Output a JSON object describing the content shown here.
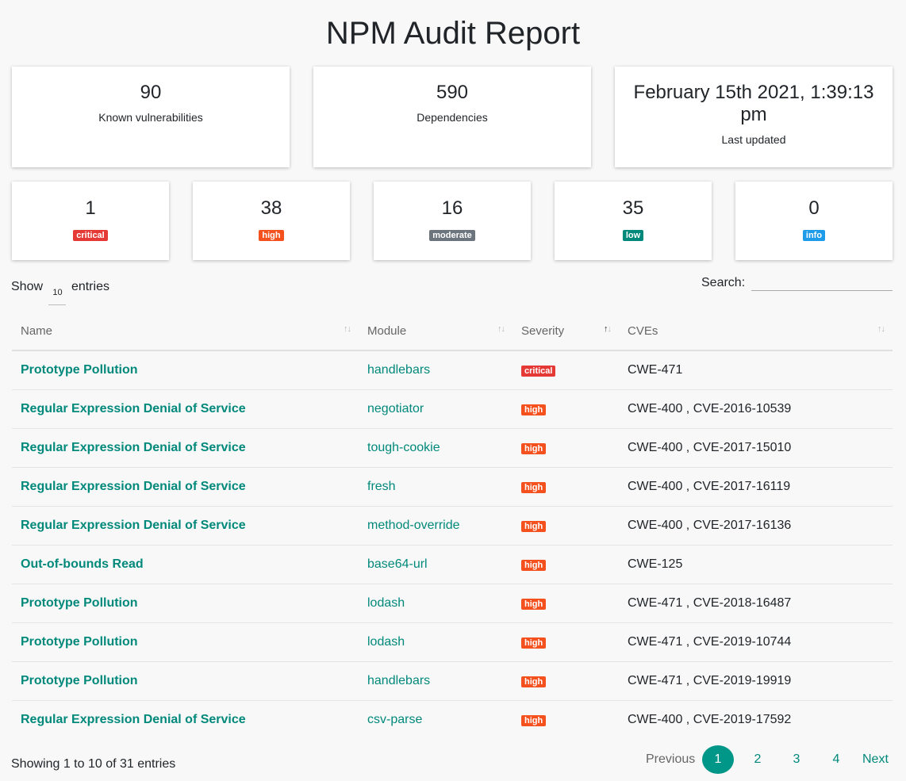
{
  "title": "NPM Audit Report",
  "summary": [
    {
      "value": "90",
      "label": "Known vulnerabilities"
    },
    {
      "value": "590",
      "label": "Dependencies"
    },
    {
      "value": "February 15th 2021, 1:39:13 pm",
      "label": "Last updated"
    }
  ],
  "severity_counts": [
    {
      "count": "1",
      "label": "critical",
      "color": "#e53935"
    },
    {
      "count": "38",
      "label": "high",
      "color": "#f4511e"
    },
    {
      "count": "16",
      "label": "moderate",
      "color": "#6c757d"
    },
    {
      "count": "35",
      "label": "low",
      "color": "#00897b"
    },
    {
      "count": "0",
      "label": "info",
      "color": "#1e9be9"
    }
  ],
  "length": {
    "show_label": "Show",
    "value": "10",
    "entries_label": "entries"
  },
  "search": {
    "label": "Search:",
    "value": ""
  },
  "table": {
    "columns": [
      "Name",
      "Module",
      "Severity",
      "CVEs"
    ],
    "sorted_column": "Severity",
    "rows": [
      {
        "name": "Prototype Pollution",
        "module": "handlebars",
        "severity": "critical",
        "cves": "CWE-471"
      },
      {
        "name": "Regular Expression Denial of Service",
        "module": "negotiator",
        "severity": "high",
        "cves": "CWE-400 , CVE-2016-10539"
      },
      {
        "name": "Regular Expression Denial of Service",
        "module": "tough-cookie",
        "severity": "high",
        "cves": "CWE-400 , CVE-2017-15010"
      },
      {
        "name": "Regular Expression Denial of Service",
        "module": "fresh",
        "severity": "high",
        "cves": "CWE-400 , CVE-2017-16119"
      },
      {
        "name": "Regular Expression Denial of Service",
        "module": "method-override",
        "severity": "high",
        "cves": "CWE-400 , CVE-2017-16136"
      },
      {
        "name": "Out-of-bounds Read",
        "module": "base64-url",
        "severity": "high",
        "cves": "CWE-125"
      },
      {
        "name": "Prototype Pollution",
        "module": "lodash",
        "severity": "high",
        "cves": "CWE-471 , CVE-2018-16487"
      },
      {
        "name": "Prototype Pollution",
        "module": "lodash",
        "severity": "high",
        "cves": "CWE-471 , CVE-2019-10744"
      },
      {
        "name": "Prototype Pollution",
        "module": "handlebars",
        "severity": "high",
        "cves": "CWE-471 , CVE-2019-19919"
      },
      {
        "name": "Regular Expression Denial of Service",
        "module": "csv-parse",
        "severity": "high",
        "cves": "CWE-400 , CVE-2019-17592"
      }
    ]
  },
  "info_text": "Showing 1 to 10 of 31 entries",
  "pagination": {
    "previous": "Previous",
    "pages": [
      "1",
      "2",
      "3",
      "4"
    ],
    "current": "1",
    "next": "Next"
  }
}
